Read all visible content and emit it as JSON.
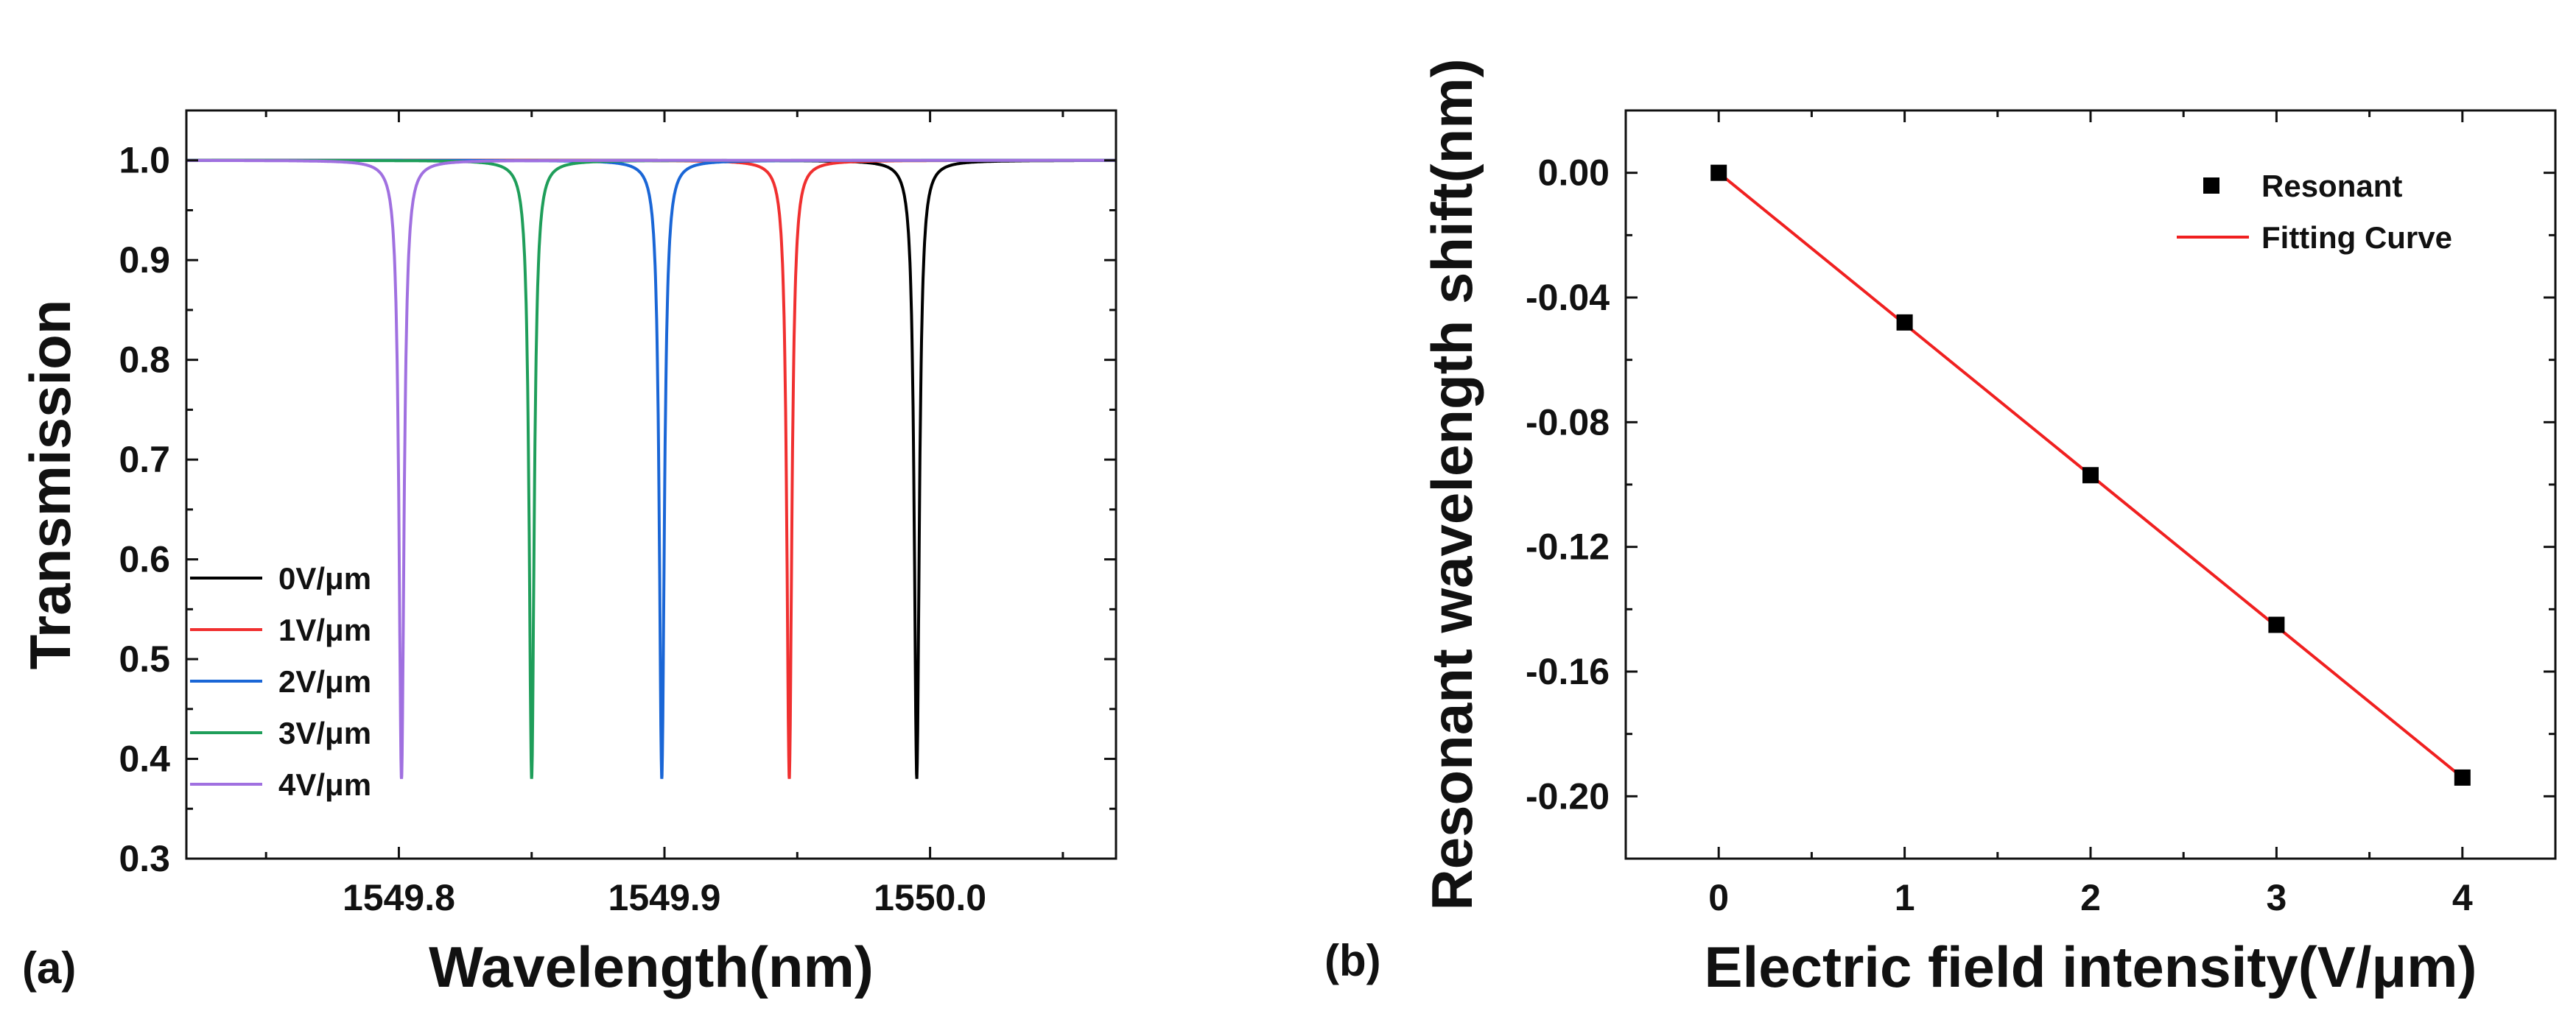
{
  "chart_data": [
    {
      "type": "line",
      "panel_label": "(a)",
      "xlabel": "Wavelength(nm)",
      "ylabel": "Transmission",
      "xlim": [
        1549.72,
        1550.07
      ],
      "ylim": [
        0.3,
        1.05
      ],
      "xticks": [
        1549.8,
        1549.9,
        1550.0
      ],
      "xtick_labels": [
        "1549.8",
        "1549.9",
        "1550.0"
      ],
      "yticks": [
        0.3,
        0.4,
        0.5,
        0.6,
        0.7,
        0.8,
        0.9,
        1.0
      ],
      "ytick_labels": [
        "0.3",
        "0.4",
        "0.5",
        "0.6",
        "0.7",
        "0.8",
        "0.9",
        "1.0"
      ],
      "legend_position": "lower-left",
      "series": [
        {
          "name": "0V/μm",
          "color": "#000000",
          "center": 1549.995,
          "min_transmission": 0.38,
          "baseline": 1.0
        },
        {
          "name": "1V/μm",
          "color": "#f03030",
          "center": 1549.947,
          "min_transmission": 0.38,
          "baseline": 1.0
        },
        {
          "name": "2V/μm",
          "color": "#1a66d6",
          "center": 1549.899,
          "min_transmission": 0.38,
          "baseline": 1.0
        },
        {
          "name": "3V/μm",
          "color": "#1f9e5a",
          "center": 1549.85,
          "min_transmission": 0.38,
          "baseline": 1.0
        },
        {
          "name": "4V/μm",
          "color": "#a070e0",
          "center": 1549.801,
          "min_transmission": 0.38,
          "baseline": 1.0
        }
      ]
    },
    {
      "type": "scatter",
      "panel_label": "(b)",
      "xlabel": "Electric field intensity(V/μm)",
      "ylabel": "Resonant wavelength shift(nm)",
      "xlim": [
        -0.5,
        4.5
      ],
      "ylim": [
        -0.22,
        0.02
      ],
      "xticks": [
        0,
        1,
        2,
        3,
        4
      ],
      "xtick_labels": [
        "0",
        "1",
        "2",
        "3",
        "4"
      ],
      "yticks": [
        0.0,
        -0.04,
        -0.08,
        -0.12,
        -0.16,
        -0.2
      ],
      "ytick_labels": [
        "0.00",
        "-0.04",
        "-0.08",
        "-0.12",
        "-0.16",
        "-0.20"
      ],
      "legend_position": "top-right",
      "series": [
        {
          "name": "Resonant",
          "kind": "markers",
          "color": "#000000",
          "x": [
            0,
            1,
            2,
            3,
            4
          ],
          "y": [
            0.0,
            -0.048,
            -0.097,
            -0.145,
            -0.194
          ]
        },
        {
          "name": "Fitting Curve",
          "kind": "line",
          "color": "#f02020",
          "x": [
            0,
            4
          ],
          "y": [
            0.0,
            -0.194
          ]
        }
      ]
    }
  ]
}
